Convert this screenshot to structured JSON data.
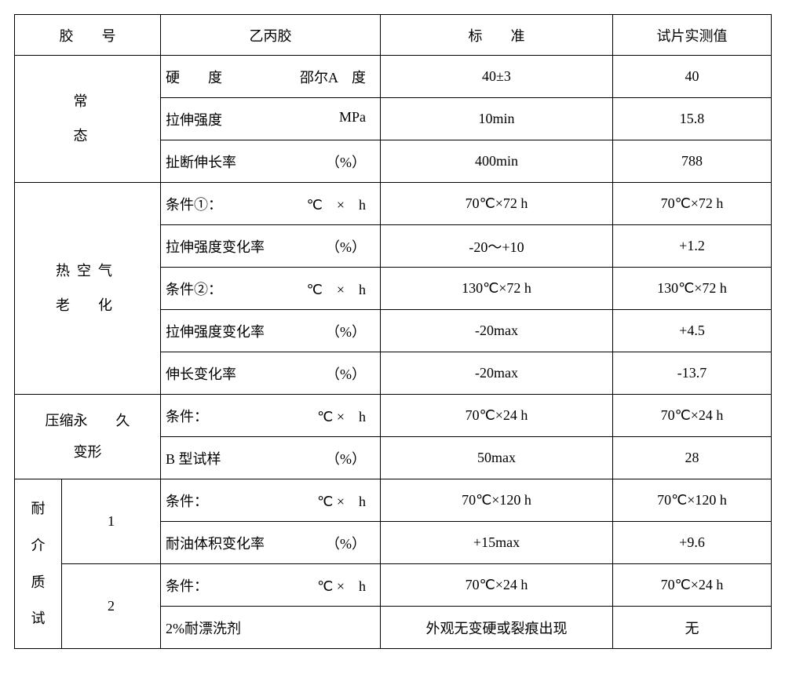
{
  "header": {
    "col1": "胶　　号",
    "col2": "乙丙胶",
    "col3": "标　　准",
    "col4": "试片实测值"
  },
  "sec1": {
    "title": "常\n态",
    "rows": [
      {
        "label": "硬　　度",
        "unit": "邵尔A　度",
        "std": "40±3",
        "val": "40"
      },
      {
        "label": "拉伸强度",
        "unit": "MPa",
        "std": "10min",
        "val": "15.8"
      },
      {
        "label": "扯断伸长率",
        "unit": "（%）",
        "std": "400min",
        "val": "788"
      }
    ]
  },
  "sec2": {
    "title": "热空气\n老　化",
    "rows": [
      {
        "label": "条件①：",
        "unit": "℃　×　h",
        "std": "70℃×72 h",
        "val": "70℃×72 h"
      },
      {
        "label": "拉伸强度变化率",
        "unit": "（%）",
        "std": "-20～+10",
        "val": "+1.2"
      },
      {
        "label": "条件②：",
        "unit": "℃　×　h",
        "std": "130℃×72 h",
        "val": "130℃×72 h"
      },
      {
        "label": "拉伸强度变化率",
        "unit": "（%）",
        "std": "-20max",
        "val": "+4.5"
      },
      {
        "label": "伸长变化率",
        "unit": "（%）",
        "std": "-20max",
        "val": "-13.7"
      }
    ]
  },
  "sec3": {
    "title_line1": "压缩永　　久",
    "title_line2": "变形",
    "rows": [
      {
        "label": "条件：",
        "unit": "℃ ×　h",
        "std": "70℃×24 h",
        "val": "70℃×24 h"
      },
      {
        "label": "B 型试样",
        "unit": "（%）",
        "std": "50max",
        "val": "28"
      }
    ]
  },
  "sec4": {
    "title": "耐\n介\n质\n试",
    "sub1": "1",
    "sub2": "2",
    "rows": [
      {
        "label": "条件：",
        "unit": "℃ ×　h",
        "std": "70℃×120 h",
        "val": "70℃×120 h"
      },
      {
        "label": "耐油体积变化率",
        "unit": "（%）",
        "std": "+15max",
        "val": "+9.6"
      },
      {
        "label": "条件：",
        "unit": "℃ ×　h",
        "std": "70℃×24 h",
        "val": "70℃×24 h"
      },
      {
        "label": "2%耐漂洗剂",
        "unit": "",
        "std": "外观无变硬或裂痕出现",
        "val": "无"
      }
    ]
  }
}
